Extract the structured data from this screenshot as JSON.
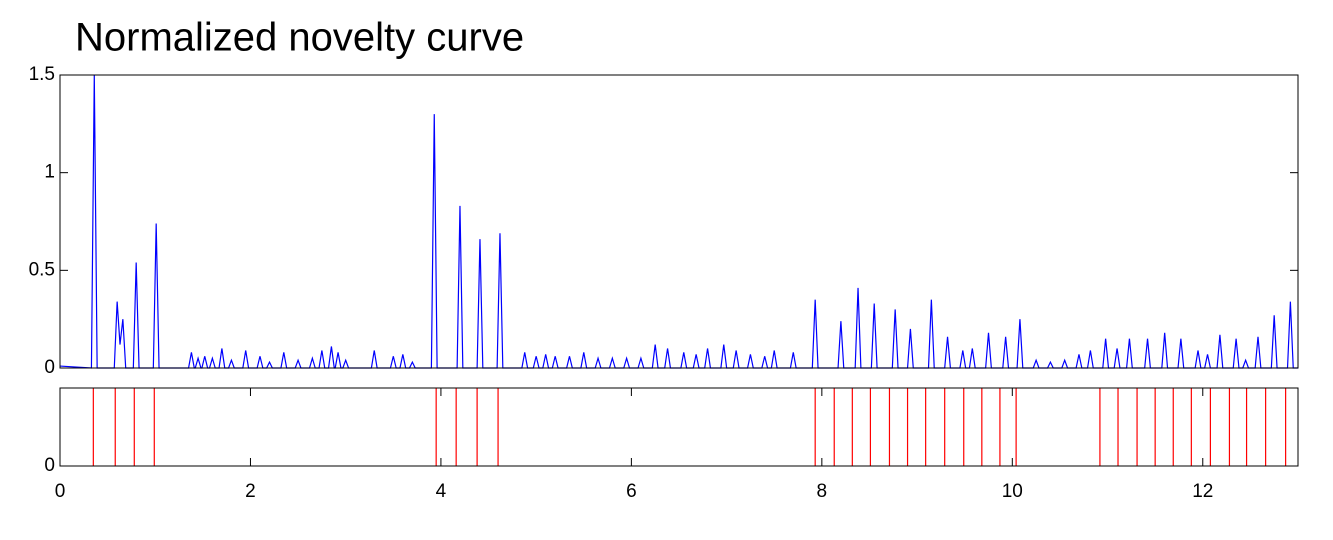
{
  "chart_data": [
    {
      "type": "line",
      "title": "Normalized novelty curve",
      "color": "#0000ff",
      "xlim": [
        0,
        13
      ],
      "ylim": [
        0,
        1.5
      ],
      "yticks": [
        0,
        0.5,
        1,
        1.5
      ],
      "x": [
        0,
        0.33,
        0.36,
        0.39,
        0.57,
        0.6,
        0.63,
        0.66,
        0.69,
        0.77,
        0.8,
        0.83,
        0.98,
        1.01,
        1.04,
        1.35,
        1.38,
        1.41,
        1.42,
        1.45,
        1.48,
        1.49,
        1.52,
        1.55,
        1.57,
        1.6,
        1.63,
        1.67,
        1.7,
        1.73,
        1.77,
        1.8,
        1.83,
        1.92,
        1.95,
        1.98,
        2.07,
        2.1,
        2.13,
        2.17,
        2.2,
        2.23,
        2.32,
        2.35,
        2.38,
        2.47,
        2.5,
        2.53,
        2.62,
        2.65,
        2.68,
        2.72,
        2.75,
        2.78,
        2.82,
        2.85,
        2.88,
        2.89,
        2.92,
        2.95,
        2.97,
        3.0,
        3.03,
        3.27,
        3.3,
        3.33,
        3.47,
        3.5,
        3.53,
        3.57,
        3.6,
        3.63,
        3.67,
        3.7,
        3.73,
        3.9,
        3.93,
        3.96,
        4.17,
        4.2,
        4.23,
        4.38,
        4.41,
        4.44,
        4.59,
        4.62,
        4.65,
        4.85,
        4.88,
        4.91,
        4.97,
        5.0,
        5.03,
        5.07,
        5.1,
        5.13,
        5.17,
        5.2,
        5.23,
        5.32,
        5.35,
        5.38,
        5.47,
        5.5,
        5.53,
        5.62,
        5.65,
        5.68,
        5.77,
        5.8,
        5.83,
        5.92,
        5.95,
        5.98,
        6.07,
        6.1,
        6.13,
        6.22,
        6.25,
        6.28,
        6.35,
        6.38,
        6.41,
        6.52,
        6.55,
        6.58,
        6.65,
        6.68,
        6.71,
        6.77,
        6.8,
        6.83,
        6.94,
        6.97,
        7.0,
        7.07,
        7.1,
        7.13,
        7.22,
        7.25,
        7.28,
        7.37,
        7.4,
        7.43,
        7.47,
        7.5,
        7.53,
        7.67,
        7.7,
        7.73,
        7.9,
        7.93,
        7.96,
        8.17,
        8.2,
        8.23,
        8.35,
        8.38,
        8.41,
        8.52,
        8.55,
        8.58,
        8.74,
        8.77,
        8.8,
        8.9,
        8.93,
        8.96,
        9.12,
        9.15,
        9.18,
        9.29,
        9.32,
        9.35,
        9.45,
        9.48,
        9.51,
        9.55,
        9.58,
        9.61,
        9.72,
        9.75,
        9.78,
        9.9,
        9.93,
        9.96,
        10.05,
        10.08,
        10.11,
        10.22,
        10.25,
        10.28,
        10.37,
        10.4,
        10.43,
        10.52,
        10.55,
        10.58,
        10.67,
        10.7,
        10.73,
        10.79,
        10.82,
        10.85,
        10.95,
        10.98,
        11.01,
        11.07,
        11.1,
        11.13,
        11.2,
        11.23,
        11.26,
        11.39,
        11.42,
        11.45,
        11.57,
        11.6,
        11.63,
        11.74,
        11.77,
        11.8,
        11.92,
        11.95,
        11.98,
        12.02,
        12.05,
        12.08,
        12.15,
        12.18,
        12.21,
        12.32,
        12.35,
        12.38,
        12.42,
        12.45,
        12.48,
        12.55,
        12.58,
        12.61,
        12.72,
        12.75,
        12.78,
        12.89,
        12.92,
        12.95,
        13
      ],
      "values": [
        0.01,
        0,
        1.5,
        0,
        0,
        0.34,
        0.12,
        0.25,
        0,
        0,
        0.54,
        0,
        0,
        0.74,
        0,
        0,
        0.08,
        0,
        0,
        0.05,
        0,
        0,
        0.06,
        0,
        0,
        0.05,
        0,
        0,
        0.1,
        0,
        0,
        0.04,
        0,
        0,
        0.09,
        0,
        0,
        0.06,
        0,
        0,
        0.03,
        0,
        0,
        0.08,
        0,
        0,
        0.04,
        0,
        0,
        0.05,
        0,
        0,
        0.09,
        0,
        0,
        0.11,
        0,
        0,
        0.08,
        0,
        0,
        0.04,
        0,
        0,
        0.09,
        0,
        0,
        0.06,
        0,
        0,
        0.07,
        0,
        0,
        0.03,
        0,
        0,
        1.3,
        0,
        0,
        0.83,
        0,
        0,
        0.66,
        0,
        0,
        0.69,
        0,
        0,
        0.08,
        0,
        0,
        0.06,
        0,
        0,
        0.07,
        0,
        0,
        0.06,
        0,
        0,
        0.06,
        0,
        0,
        0.08,
        0,
        0,
        0.05,
        0,
        0,
        0.05,
        0,
        0,
        0.05,
        0,
        0,
        0.05,
        0,
        0,
        0.12,
        0,
        0,
        0.1,
        0,
        0,
        0.08,
        0,
        0,
        0.07,
        0,
        0,
        0.1,
        0,
        0,
        0.12,
        0,
        0,
        0.09,
        0,
        0,
        0.07,
        0,
        0,
        0.06,
        0,
        0,
        0.09,
        0,
        0,
        0.08,
        0,
        0,
        0.35,
        0,
        0,
        0.24,
        0,
        0,
        0.41,
        0,
        0,
        0.33,
        0,
        0,
        0.3,
        0,
        0,
        0.2,
        0,
        0,
        0.35,
        0,
        0,
        0.16,
        0,
        0,
        0.09,
        0,
        0,
        0.1,
        0,
        0,
        0.18,
        0,
        0,
        0.16,
        0,
        0,
        0.25,
        0,
        0,
        0.04,
        0,
        0,
        0.03,
        0,
        0,
        0.04,
        0,
        0,
        0.07,
        0,
        0,
        0.09,
        0,
        0,
        0.15,
        0,
        0,
        0.1,
        0,
        0,
        0.15,
        0,
        0,
        0.15,
        0,
        0,
        0.18,
        0,
        0,
        0.15,
        0,
        0,
        0.09,
        0,
        0,
        0.07,
        0,
        0,
        0.17,
        0,
        0,
        0.15,
        0,
        0,
        0.04,
        0,
        0,
        0.16,
        0,
        0,
        0.27,
        0,
        0,
        0.34,
        0,
        0
      ]
    },
    {
      "type": "vlines",
      "color": "#ff0000",
      "xlim": [
        0,
        13
      ],
      "ylim": [
        0,
        1
      ],
      "yticks": [
        0
      ],
      "xticks": [
        0,
        2,
        4,
        6,
        8,
        10,
        12
      ],
      "x": [
        0.35,
        0.58,
        0.78,
        0.99,
        3.95,
        4.16,
        4.38,
        4.6,
        7.93,
        8.13,
        8.32,
        8.51,
        8.71,
        8.9,
        9.09,
        9.29,
        9.49,
        9.68,
        9.87,
        10.04,
        10.92,
        11.11,
        11.31,
        11.5,
        11.69,
        11.88,
        12.08,
        12.28,
        12.46,
        12.66,
        12.87
      ]
    }
  ]
}
